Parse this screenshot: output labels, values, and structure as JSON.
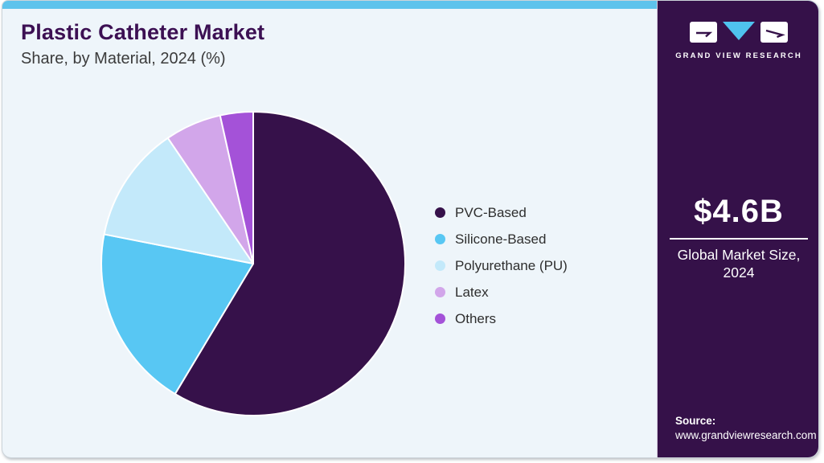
{
  "header": {
    "title": "Plastic Catheter Market",
    "subtitle": "Share, by Material, 2024 (%)"
  },
  "chart_data": {
    "type": "pie",
    "title": "Plastic Catheter Market Share, by Material, 2024 (%)",
    "categories": [
      "PVC-Based",
      "Silicone-Based",
      "Polyurethane (PU)",
      "Latex",
      "Others"
    ],
    "values": [
      58.6,
      19.5,
      12.4,
      6.0,
      3.5
    ],
    "colors": [
      "#36114a",
      "#58c7f3",
      "#c3e9fa",
      "#d2a6ea",
      "#a452d8"
    ],
    "start_angle_deg": 0,
    "direction": "clockwise",
    "slice_stroke": "#ffffff",
    "legend_position": "right",
    "data_labels_shown": false
  },
  "sidebar": {
    "logo": {
      "brand": "GRAND VIEW RESEARCH",
      "triangle_color": "#4fc2ee",
      "mark_color": "#ffffff",
      "glyph_color": "#351149"
    },
    "market_size": {
      "value": "$4.6B",
      "label": "Global Market Size, 2024"
    },
    "source": {
      "label": "Source:",
      "url": "www.grandviewresearch.com"
    },
    "background": "#351149"
  },
  "colors": {
    "card_background": "#eef5fa",
    "top_strip": "#5ec3ec",
    "title_text": "#3c1053",
    "subtitle_text": "#3b3b3b",
    "legend_text": "#2e2e2e"
  }
}
